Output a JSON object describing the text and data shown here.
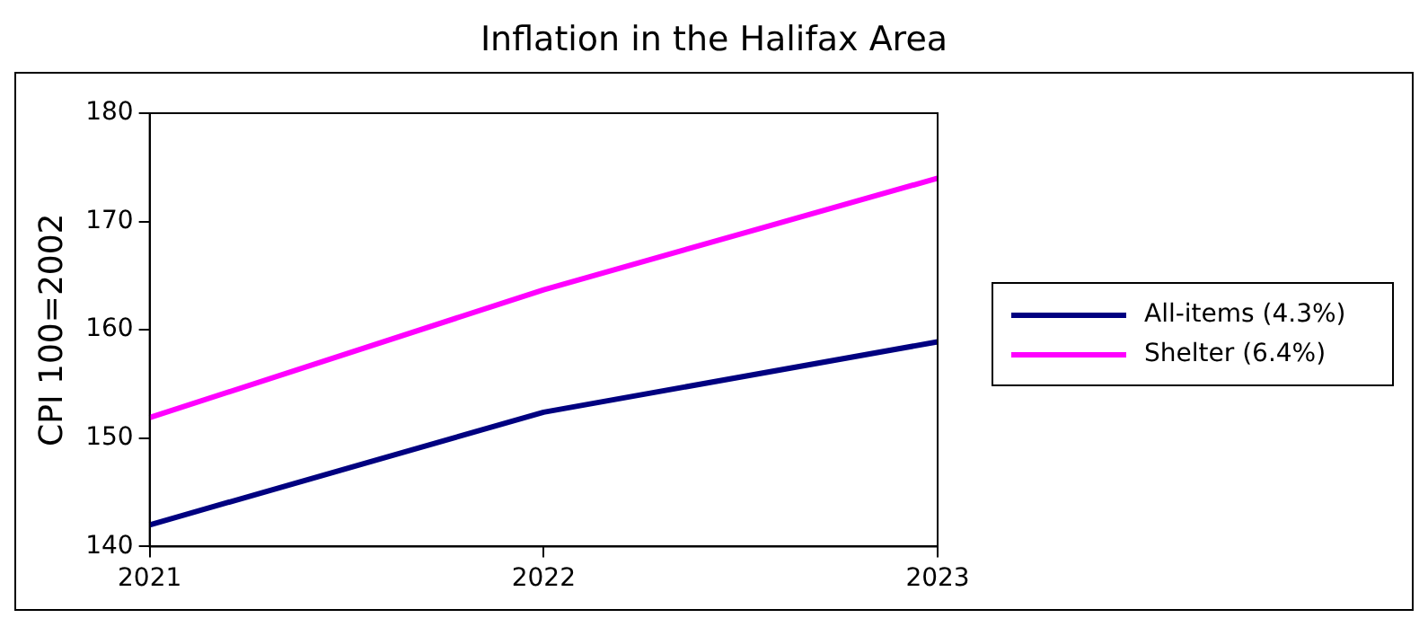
{
  "chart_data": {
    "type": "line",
    "title": "Inflation in the Halifax Area",
    "ylabel": "CPI 100=2002",
    "categories": [
      "2021",
      "2022",
      "2023"
    ],
    "series": [
      {
        "name": "All-items (4.3%)",
        "color": "#000080",
        "values": [
          142.0,
          152.4,
          158.9
        ]
      },
      {
        "name": "Shelter (6.4%)",
        "color": "#ff00ff",
        "values": [
          151.9,
          163.7,
          174.0
        ]
      }
    ],
    "ylim": [
      140,
      180
    ],
    "yticks": [
      140,
      150,
      160,
      170,
      180
    ],
    "grid": false,
    "legend": "right",
    "marker": "none",
    "line_style": "solid"
  }
}
